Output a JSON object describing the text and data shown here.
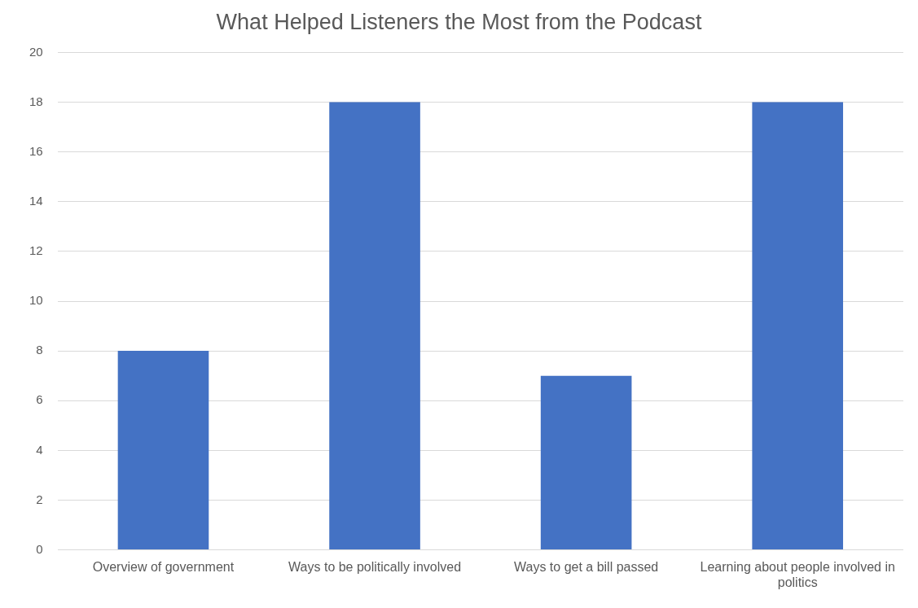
{
  "chart_data": {
    "type": "bar",
    "title": "What Helped Listeners the Most from the Podcast",
    "categories": [
      "Overview of government",
      "Ways to be politically involved",
      "Ways to get a bill passed",
      "Learning about people involved in politics"
    ],
    "values": [
      8,
      18,
      7,
      18
    ],
    "color": "#4472c4",
    "ylim": [
      0,
      20
    ],
    "yticks": [
      0,
      2,
      4,
      6,
      8,
      10,
      12,
      14,
      16,
      18,
      20
    ],
    "grid": "y",
    "legend": false
  }
}
